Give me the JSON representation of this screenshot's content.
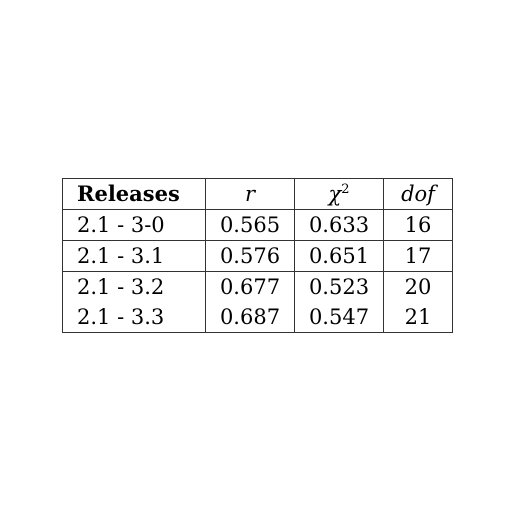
{
  "table": {
    "headers": {
      "releases": "Releases",
      "r": "r",
      "chi_base": "χ",
      "chi_exp": "2",
      "dof": "dof"
    },
    "rows": [
      {
        "releases": "2.1 - 3-0",
        "r": "0.565",
        "chi2": "0.633",
        "dof": "16"
      },
      {
        "releases": "2.1 - 3.1",
        "r": "0.576",
        "chi2": "0.651",
        "dof": "17"
      },
      {
        "releases": "2.1 - 3.2",
        "r": "0.677",
        "chi2": "0.523",
        "dof": "20"
      },
      {
        "releases": "2.1 - 3.3",
        "r": "0.687",
        "chi2": "0.547",
        "dof": "21"
      }
    ]
  }
}
